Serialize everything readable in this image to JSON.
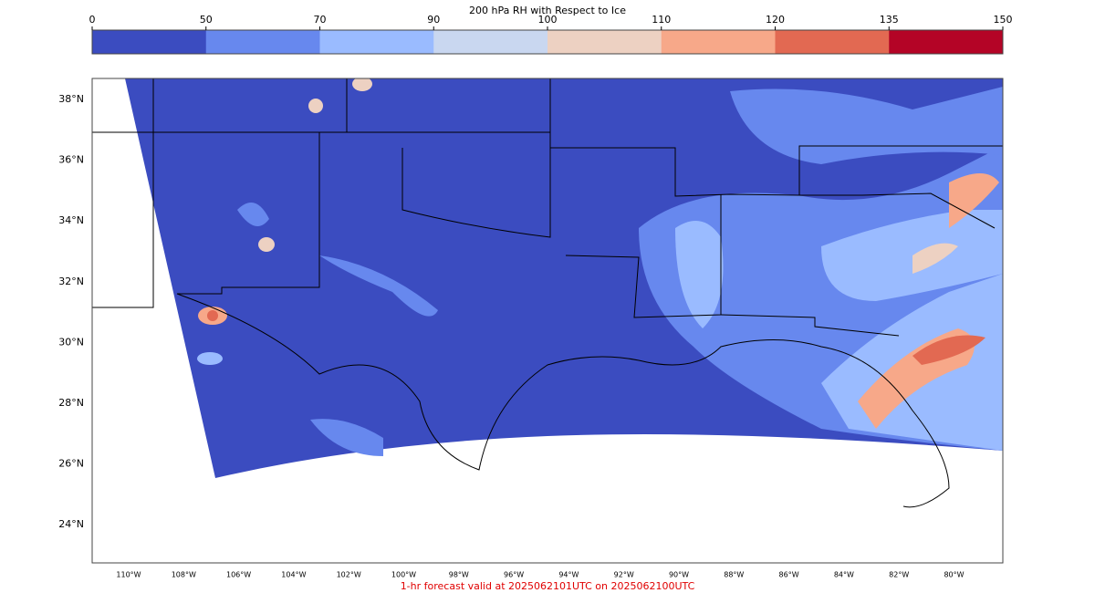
{
  "colorbar": {
    "title": "200 hPa RH with Respect to Ice",
    "levels": [
      0,
      50,
      70,
      90,
      100,
      110,
      120,
      135,
      150
    ],
    "colors": [
      "#3b4cc0",
      "#6788ee",
      "#9abbff",
      "#c9d7f0",
      "#edd1c2",
      "#f7a889",
      "#e26952",
      "#b40426"
    ]
  },
  "map": {
    "lat_labels": [
      "38°N",
      "36°N",
      "34°N",
      "32°N",
      "30°N",
      "28°N",
      "26°N",
      "24°N"
    ],
    "lon_labels": [
      "110°W",
      "108°W",
      "106°W",
      "104°W",
      "102°W",
      "100°W",
      "98°W",
      "96°W",
      "94°W",
      "92°W",
      "90°W",
      "88°W",
      "86°W",
      "84°W",
      "82°W",
      "80°W"
    ]
  },
  "footer": "1-hr forecast valid at 2025062101UTC on 2025062100UTC"
}
